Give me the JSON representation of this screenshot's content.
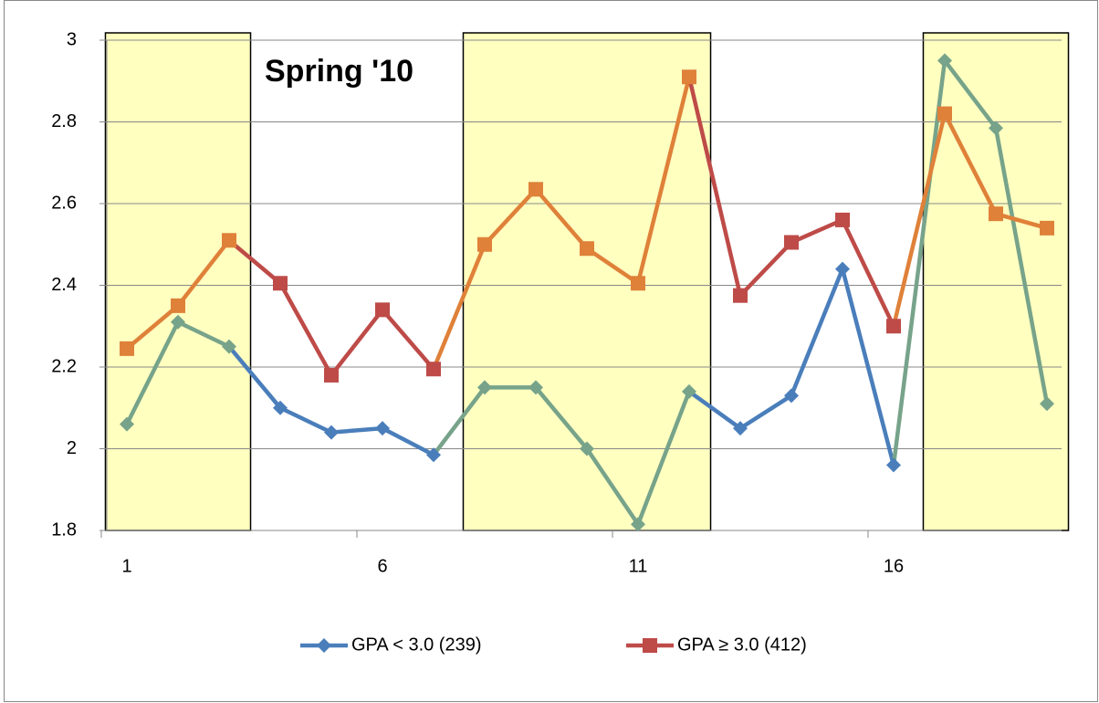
{
  "chart_data": {
    "type": "line",
    "annotation": "Spring '10",
    "categories": [
      1,
      null,
      null,
      null,
      null,
      6,
      null,
      null,
      null,
      null,
      11,
      null,
      null,
      null,
      null,
      16,
      null,
      null,
      null
    ],
    "highlight_ranges": [
      [
        1,
        3
      ],
      [
        8,
        12
      ],
      [
        17,
        19
      ]
    ],
    "highlight_fill": "#ffffc0",
    "series": [
      {
        "name": "GPA < 3.0 (239)",
        "color": "#4a7ebb",
        "highlight_color": "#77a38a",
        "marker": "diamond",
        "values": [
          2.06,
          2.31,
          2.25,
          2.1,
          2.04,
          2.05,
          1.985,
          2.15,
          2.15,
          2.0,
          1.815,
          2.14,
          2.05,
          2.13,
          2.44,
          1.96,
          2.95,
          2.785,
          2.11
        ]
      },
      {
        "name": "GPA ≥ 3.0 (412)",
        "color": "#be4b48",
        "highlight_color": "#df8139",
        "marker": "square",
        "values": [
          2.245,
          2.35,
          2.51,
          2.405,
          2.18,
          2.34,
          2.195,
          2.5,
          2.635,
          2.49,
          2.405,
          2.91,
          2.375,
          2.505,
          2.56,
          2.3,
          2.82,
          2.575,
          2.54
        ]
      }
    ],
    "ylim": [
      1.8,
      3
    ],
    "yticks": [
      1.8,
      2,
      2.2,
      2.4,
      2.6,
      2.8,
      3
    ],
    "grid": true,
    "legend": "bottom"
  }
}
